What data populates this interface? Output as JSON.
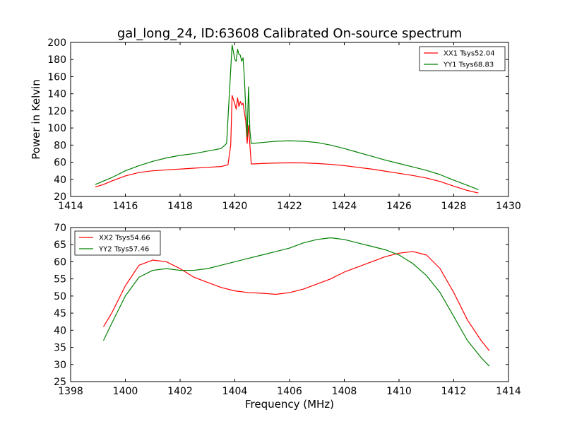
{
  "chart_data": [
    {
      "type": "line",
      "title": "gal_long_24, ID:63608 Calibrated On-source spectrum",
      "xlabel": "",
      "ylabel": "Power in Kelvin",
      "xlim": [
        1414,
        1430
      ],
      "ylim": [
        20,
        200
      ],
      "xticks": [
        1414,
        1416,
        1418,
        1420,
        1422,
        1424,
        1426,
        1428,
        1430
      ],
      "yticks": [
        20,
        40,
        60,
        80,
        100,
        120,
        140,
        160,
        180,
        200
      ],
      "grid": false,
      "legend_position": "top-right",
      "series": [
        {
          "name": "XX1 Tsys52.04",
          "color": "#ff0000",
          "x": [
            1414.9,
            1415.2,
            1415.5,
            1416.0,
            1416.5,
            1417.0,
            1417.5,
            1418.0,
            1418.5,
            1419.0,
            1419.5,
            1419.75,
            1419.85,
            1419.9,
            1420.0,
            1420.05,
            1420.1,
            1420.15,
            1420.2,
            1420.25,
            1420.3,
            1420.35,
            1420.4,
            1420.45,
            1420.5,
            1420.55,
            1420.6,
            1420.65,
            1421.0,
            1421.5,
            1422.0,
            1422.5,
            1423.0,
            1423.5,
            1424.0,
            1424.5,
            1425.0,
            1425.5,
            1426.0,
            1426.5,
            1427.0,
            1427.5,
            1428.0,
            1428.5,
            1428.9
          ],
          "y": [
            31,
            34,
            38,
            44,
            48,
            50,
            51,
            52,
            53,
            54,
            55,
            57,
            80,
            138,
            128,
            122,
            135,
            125,
            131,
            127,
            129,
            118,
            108,
            82,
            103,
            80,
            58,
            58,
            58.5,
            59,
            59.3,
            59.2,
            58.5,
            57.5,
            56,
            54,
            52,
            49.5,
            47,
            44.5,
            41.5,
            37.5,
            32,
            27,
            24
          ]
        },
        {
          "name": "YY1 Tsys68.83",
          "color": "#008000",
          "x": [
            1414.9,
            1415.2,
            1415.5,
            1416.0,
            1416.5,
            1417.0,
            1417.5,
            1418.0,
            1418.5,
            1419.0,
            1419.5,
            1419.7,
            1419.8,
            1419.9,
            1420.0,
            1420.05,
            1420.1,
            1420.15,
            1420.2,
            1420.25,
            1420.3,
            1420.35,
            1420.4,
            1420.45,
            1420.5,
            1420.55,
            1420.6,
            1420.65,
            1421.0,
            1421.5,
            1422.0,
            1422.5,
            1423.0,
            1423.5,
            1424.0,
            1424.5,
            1425.0,
            1425.5,
            1426.0,
            1426.5,
            1427.0,
            1427.5,
            1428.0,
            1428.5,
            1428.9
          ],
          "y": [
            34,
            38,
            42,
            50,
            56,
            61,
            65,
            68,
            70,
            73,
            76,
            82,
            140,
            197,
            180,
            178,
            192,
            186,
            185,
            178,
            182,
            158,
            122,
            90,
            148,
            97,
            82,
            82,
            83,
            84.5,
            85,
            84.5,
            83,
            80,
            76,
            71.5,
            67,
            62.5,
            58.5,
            54.5,
            50.5,
            45.5,
            39,
            33,
            28
          ]
        }
      ]
    },
    {
      "type": "line",
      "title": "",
      "xlabel": "Frequency (MHz)",
      "ylabel": "",
      "xlim": [
        1398,
        1414
      ],
      "ylim": [
        25,
        70
      ],
      "xticks": [
        1398,
        1400,
        1402,
        1404,
        1406,
        1408,
        1410,
        1412,
        1414
      ],
      "yticks": [
        25,
        30,
        35,
        40,
        45,
        50,
        55,
        60,
        65,
        70
      ],
      "grid": false,
      "legend_position": "top-left",
      "series": [
        {
          "name": "XX2 Tsys54.66",
          "color": "#ff0000",
          "x": [
            1399.2,
            1399.5,
            1400.0,
            1400.5,
            1401.0,
            1401.5,
            1402.0,
            1402.5,
            1403.0,
            1403.5,
            1404.0,
            1404.5,
            1405.0,
            1405.5,
            1406.0,
            1406.5,
            1407.0,
            1407.5,
            1408.0,
            1408.5,
            1409.0,
            1409.5,
            1410.0,
            1410.5,
            1411.0,
            1411.5,
            1412.0,
            1412.5,
            1413.0,
            1413.3
          ],
          "y": [
            41,
            45,
            53,
            59,
            60.5,
            60,
            58,
            55.5,
            54,
            52.5,
            51.5,
            51,
            50.8,
            50.5,
            51,
            52,
            53.5,
            55,
            57,
            58.5,
            60,
            61.5,
            62.5,
            63,
            62,
            58,
            51,
            43,
            37,
            34
          ]
        },
        {
          "name": "YY2 Tsys57.46",
          "color": "#008000",
          "x": [
            1399.2,
            1399.5,
            1400.0,
            1400.5,
            1401.0,
            1401.5,
            1402.0,
            1402.5,
            1403.0,
            1403.5,
            1404.0,
            1404.5,
            1405.0,
            1405.5,
            1406.0,
            1406.5,
            1407.0,
            1407.5,
            1408.0,
            1408.5,
            1409.0,
            1409.5,
            1410.0,
            1410.5,
            1411.0,
            1411.5,
            1412.0,
            1412.5,
            1413.0,
            1413.3
          ],
          "y": [
            37,
            42,
            50,
            55.5,
            57.5,
            58,
            57.5,
            57.5,
            58,
            59,
            60,
            61,
            62,
            63,
            64,
            65.5,
            66.5,
            67,
            66.5,
            65.5,
            64.5,
            63.5,
            62,
            59.5,
            56,
            51,
            44,
            37,
            32,
            29.5
          ]
        }
      ]
    }
  ]
}
